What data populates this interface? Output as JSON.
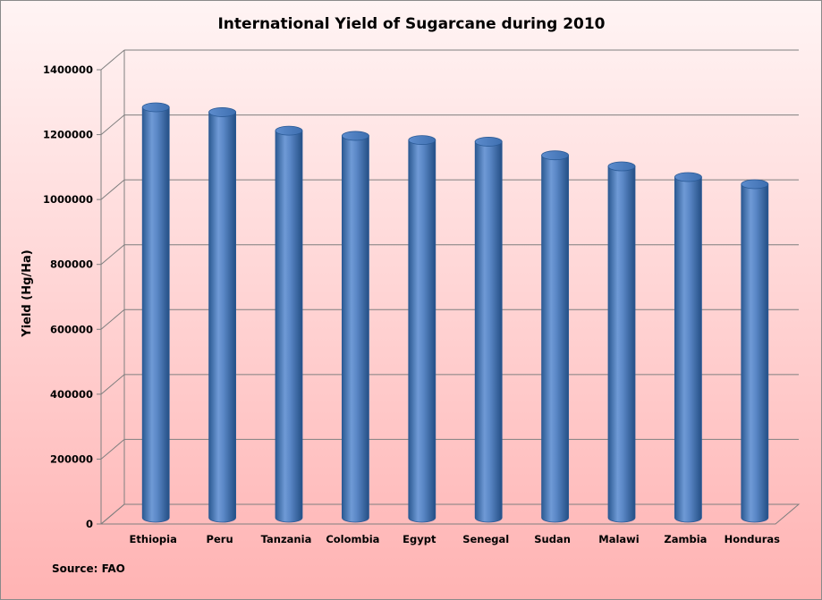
{
  "chart_data": {
    "type": "bar",
    "style": "3d-cylinder",
    "title": "International Yield of Sugarcane during 2010",
    "xlabel": "",
    "ylabel": "Yield (Hg/Ha)",
    "source": "Source: FAO",
    "categories": [
      "Ethiopia",
      "Peru",
      "Tanzania",
      "Colombia",
      "Egypt",
      "Senegal",
      "Sudan",
      "Malawi",
      "Zambia",
      "Honduras"
    ],
    "values": [
      1265000,
      1250000,
      1193000,
      1177000,
      1164000,
      1159000,
      1117000,
      1083000,
      1050000,
      1028000
    ],
    "yticks": [
      "0",
      "200000",
      "400000",
      "600000",
      "800000",
      "1000000",
      "1200000",
      "1400000"
    ],
    "ylim": [
      0,
      1400000
    ],
    "grid": true,
    "legend": "none",
    "colors": {
      "bar": "#4f81bd",
      "bar_dark": "#2c5a92",
      "bar_light": "#8fb2e0",
      "grid": "#7f7f7f"
    }
  }
}
